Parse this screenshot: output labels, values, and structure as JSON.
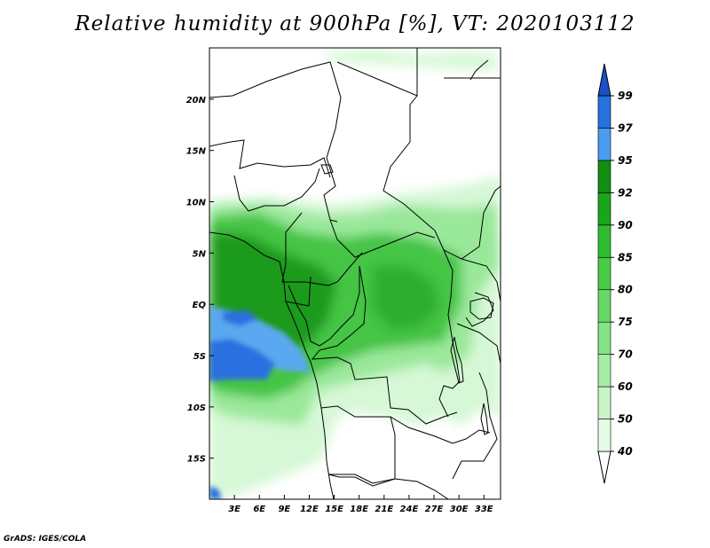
{
  "title": "Relative humidity at 900hPa [%], VT: 2020103112",
  "credit": "GrADS: IGES/COLA",
  "map": {
    "lon_ticks": [
      "3E",
      "6E",
      "9E",
      "12E",
      "15E",
      "18E",
      "21E",
      "24E",
      "27E",
      "30E",
      "33E"
    ],
    "lon_values": [
      3,
      6,
      9,
      12,
      15,
      18,
      21,
      24,
      27,
      30,
      33
    ],
    "lat_ticks": [
      "20N",
      "15N",
      "10N",
      "5N",
      "EQ",
      "5S",
      "10S",
      "15S"
    ],
    "lat_values": [
      20,
      15,
      10,
      5,
      0,
      -5,
      -10,
      -15
    ],
    "lon_range": [
      0,
      35
    ],
    "lat_range": [
      -19,
      25
    ]
  },
  "colorbar": {
    "labels": [
      "40",
      "50",
      "60",
      "70",
      "75",
      "80",
      "85",
      "90",
      "92",
      "95",
      "97",
      "99"
    ],
    "colors": [
      "#fefefe",
      "#e6fce6",
      "#c8f4c8",
      "#a6eca6",
      "#85e285",
      "#66d866",
      "#48cc48",
      "#2fbc2f",
      "#1aa61a",
      "#128e12",
      "#4a9cf0",
      "#2670e0",
      "#1c50c8"
    ]
  },
  "colors": {
    "ocean_blue": "#2c70e0",
    "light_blue": "#5aa8f0",
    "green_dark": "#1a9a1a",
    "green_mid": "#44c444",
    "green_light": "#9ae89a",
    "green_pale": "#d6f8d6"
  }
}
